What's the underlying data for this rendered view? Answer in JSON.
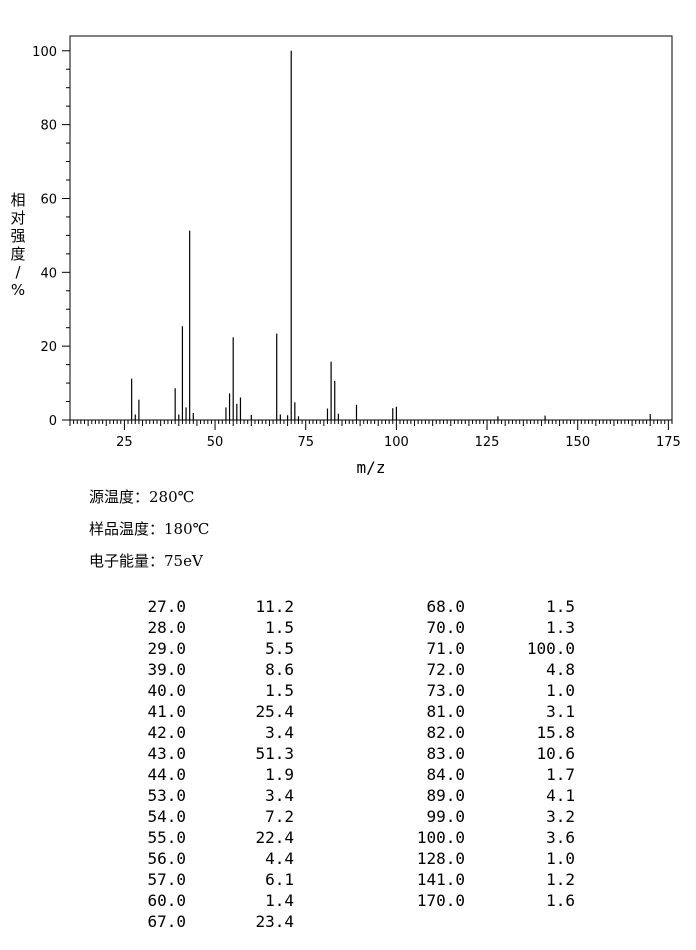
{
  "chart_data": {
    "type": "bar",
    "xlabel": "m/z",
    "ylabel": "相对强度/%",
    "xlim": [
      10,
      176
    ],
    "ylim": [
      0,
      104
    ],
    "xticks": [
      25,
      50,
      75,
      100,
      125,
      150,
      175
    ],
    "yticks": [
      0,
      20,
      40,
      60,
      80,
      100
    ],
    "peaks": [
      {
        "mz": 27.0,
        "intensity": 11.2
      },
      {
        "mz": 28.0,
        "intensity": 1.5
      },
      {
        "mz": 29.0,
        "intensity": 5.5
      },
      {
        "mz": 39.0,
        "intensity": 8.6
      },
      {
        "mz": 40.0,
        "intensity": 1.5
      },
      {
        "mz": 41.0,
        "intensity": 25.4
      },
      {
        "mz": 42.0,
        "intensity": 3.4
      },
      {
        "mz": 43.0,
        "intensity": 51.3
      },
      {
        "mz": 44.0,
        "intensity": 1.9
      },
      {
        "mz": 53.0,
        "intensity": 3.4
      },
      {
        "mz": 54.0,
        "intensity": 7.2
      },
      {
        "mz": 55.0,
        "intensity": 22.4
      },
      {
        "mz": 56.0,
        "intensity": 4.4
      },
      {
        "mz": 57.0,
        "intensity": 6.1
      },
      {
        "mz": 60.0,
        "intensity": 1.4
      },
      {
        "mz": 67.0,
        "intensity": 23.4
      },
      {
        "mz": 68.0,
        "intensity": 1.5
      },
      {
        "mz": 70.0,
        "intensity": 1.3
      },
      {
        "mz": 71.0,
        "intensity": 100.0
      },
      {
        "mz": 72.0,
        "intensity": 4.8
      },
      {
        "mz": 73.0,
        "intensity": 1.0
      },
      {
        "mz": 81.0,
        "intensity": 3.1
      },
      {
        "mz": 82.0,
        "intensity": 15.8
      },
      {
        "mz": 83.0,
        "intensity": 10.6
      },
      {
        "mz": 84.0,
        "intensity": 1.7
      },
      {
        "mz": 89.0,
        "intensity": 4.1
      },
      {
        "mz": 99.0,
        "intensity": 3.2
      },
      {
        "mz": 100.0,
        "intensity": 3.6
      },
      {
        "mz": 128.0,
        "intensity": 1.0
      },
      {
        "mz": 141.0,
        "intensity": 1.2
      },
      {
        "mz": 170.0,
        "intensity": 1.6
      }
    ]
  },
  "conditions": {
    "source_temp": "源温度：280℃",
    "sample_temp": "样品温度：180℃",
    "electron_energy": "电子能量：75eV"
  },
  "peak_table": {
    "left": [
      [
        "27.0",
        "11.2"
      ],
      [
        "28.0",
        "1.5"
      ],
      [
        "29.0",
        "5.5"
      ],
      [
        "39.0",
        "8.6"
      ],
      [
        "40.0",
        "1.5"
      ],
      [
        "41.0",
        "25.4"
      ],
      [
        "42.0",
        "3.4"
      ],
      [
        "43.0",
        "51.3"
      ],
      [
        "44.0",
        "1.9"
      ],
      [
        "53.0",
        "3.4"
      ],
      [
        "54.0",
        "7.2"
      ],
      [
        "55.0",
        "22.4"
      ],
      [
        "56.0",
        "4.4"
      ],
      [
        "57.0",
        "6.1"
      ],
      [
        "60.0",
        "1.4"
      ],
      [
        "67.0",
        "23.4"
      ]
    ],
    "right": [
      [
        "68.0",
        "1.5"
      ],
      [
        "70.0",
        "1.3"
      ],
      [
        "71.0",
        "100.0"
      ],
      [
        "72.0",
        "4.8"
      ],
      [
        "73.0",
        "1.0"
      ],
      [
        "81.0",
        "3.1"
      ],
      [
        "82.0",
        "15.8"
      ],
      [
        "83.0",
        "10.6"
      ],
      [
        "84.0",
        "1.7"
      ],
      [
        "89.0",
        "4.1"
      ],
      [
        "99.0",
        "3.2"
      ],
      [
        "100.0",
        "3.6"
      ],
      [
        "128.0",
        "1.0"
      ],
      [
        "141.0",
        "1.2"
      ],
      [
        "170.0",
        "1.6"
      ]
    ]
  }
}
